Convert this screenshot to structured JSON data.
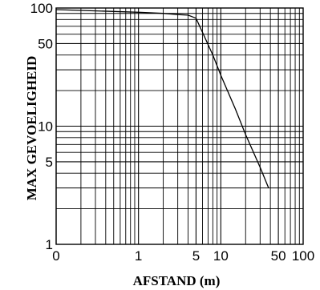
{
  "chart_data": {
    "type": "line",
    "xlabel": "AFSTAND (m)",
    "ylabel": "MAX GEVOELIGHEID",
    "x_scale": "log",
    "y_scale": "log",
    "xlim": [
      0.1,
      100
    ],
    "ylim": [
      1,
      100
    ],
    "grid": true,
    "legend": "none",
    "line_color": "#000000",
    "x_ticks": [
      {
        "value": 0.1,
        "label": "0"
      },
      {
        "value": 1,
        "label": "1"
      },
      {
        "value": 5,
        "label": "5"
      },
      {
        "value": 10,
        "label": "10"
      },
      {
        "value": 50,
        "label": "50"
      },
      {
        "value": 100,
        "label": "100"
      }
    ],
    "y_ticks": [
      {
        "value": 1,
        "label": "1"
      },
      {
        "value": 5,
        "label": "5"
      },
      {
        "value": 10,
        "label": "10"
      },
      {
        "value": 50,
        "label": "50"
      },
      {
        "value": 100,
        "label": "100"
      }
    ],
    "series": [
      {
        "x": [
          0.1,
          1,
          2,
          3,
          4,
          5,
          6,
          8,
          10,
          15,
          20,
          30,
          38
        ],
        "y": [
          97,
          92,
          90,
          88,
          87,
          82,
          62,
          40,
          27,
          14,
          8.5,
          4.5,
          3
        ]
      }
    ]
  }
}
